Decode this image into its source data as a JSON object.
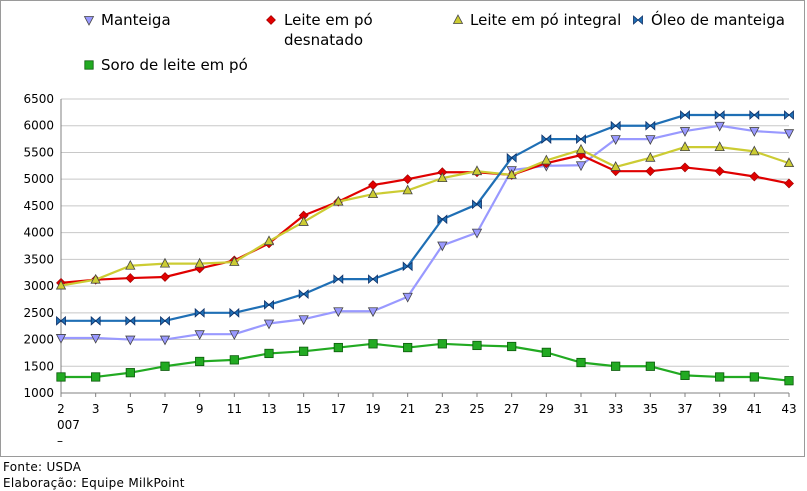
{
  "chart_data": {
    "type": "line",
    "title": "",
    "xlabel": "",
    "ylabel": "",
    "x": [
      2,
      3,
      5,
      7,
      9,
      11,
      13,
      15,
      17,
      19,
      21,
      23,
      25,
      27,
      29,
      31,
      33,
      35,
      37,
      39,
      41,
      43
    ],
    "x_tick_labels": [
      "2",
      "3",
      "5",
      "7",
      "9",
      "11",
      "13",
      "15",
      "17",
      "19",
      "21",
      "23",
      "25",
      "27",
      "29",
      "31",
      "33",
      "35",
      "37",
      "39",
      "41",
      "43"
    ],
    "x_sub_label": "007",
    "x_sub_label2": "–",
    "ylim": [
      1000,
      6500
    ],
    "y_ticks": [
      1000,
      1500,
      2000,
      2500,
      3000,
      3500,
      4000,
      4500,
      5000,
      5500,
      6000,
      6500
    ],
    "grid": true,
    "legend_position": "top",
    "series": [
      {
        "name": "Manteiga",
        "color": "#9999ff",
        "marker": "triangle-down",
        "values": [
          2030,
          2030,
          2000,
          2000,
          2100,
          2100,
          2300,
          2380,
          2530,
          2530,
          2800,
          3760,
          4000,
          5170,
          5250,
          5260,
          5750,
          5750,
          5900,
          6000,
          5900,
          5860
        ]
      },
      {
        "name": "Leite em pó desnatado",
        "name_line1": "Leite em pó",
        "name_line2": "desnatado",
        "color": "#e00000",
        "marker": "diamond",
        "values": [
          3060,
          3120,
          3150,
          3170,
          3330,
          3480,
          3800,
          4320,
          4580,
          4890,
          5000,
          5130,
          5130,
          5080,
          5300,
          5450,
          5150,
          5150,
          5220,
          5150,
          5050,
          4920
        ]
      },
      {
        "name": "Leite em pó integral",
        "color": "#cccc33",
        "marker": "triangle-up",
        "values": [
          3010,
          3120,
          3380,
          3420,
          3420,
          3450,
          3840,
          4200,
          4580,
          4720,
          4790,
          5020,
          5150,
          5080,
          5350,
          5550,
          5230,
          5400,
          5600,
          5600,
          5520,
          5300
        ]
      },
      {
        "name": "Óleo de manteiga",
        "color": "#1f6fb5",
        "marker": "bowtie",
        "values": [
          2350,
          2350,
          2350,
          2350,
          2500,
          2500,
          2650,
          2850,
          3130,
          3130,
          3370,
          4250,
          4530,
          5400,
          5750,
          5750,
          6000,
          6000,
          6200,
          6200,
          6200,
          6200
        ]
      },
      {
        "name": "Soro de leite em pó",
        "color": "#22aa22",
        "marker": "square",
        "values": [
          1300,
          1300,
          1380,
          1500,
          1590,
          1620,
          1740,
          1780,
          1850,
          1920,
          1850,
          1920,
          1890,
          1870,
          1760,
          1570,
          1500,
          1500,
          1330,
          1300,
          1300,
          1230
        ]
      }
    ]
  },
  "footer": {
    "source": "Fonte: USDA",
    "credit": "Elaboração: Equipe MilkPoint"
  }
}
